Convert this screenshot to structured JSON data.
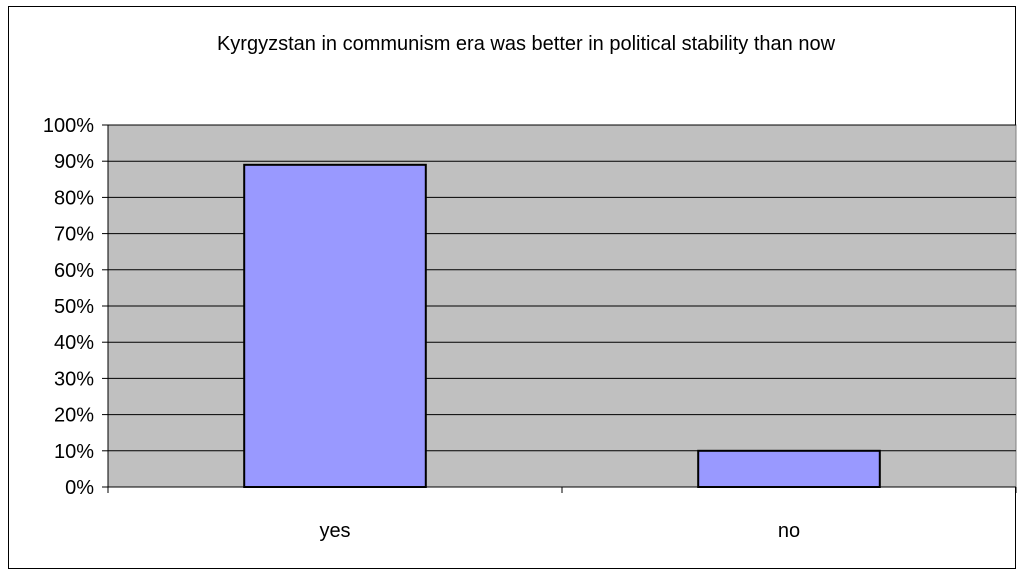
{
  "chart_data": {
    "type": "bar",
    "title": "Kyrgyzstan in communism era was better in political stability than now",
    "xlabel": "",
    "ylabel": "",
    "categories": [
      "yes",
      "no"
    ],
    "values": [
      89,
      10
    ],
    "value_unit": "%",
    "ylim": [
      0,
      100
    ],
    "yticks": [
      "0%",
      "10%",
      "20%",
      "30%",
      "40%",
      "50%",
      "60%",
      "70%",
      "80%",
      "90%",
      "100%"
    ],
    "grid": true,
    "legend": "none",
    "colors": {
      "plot_background": "#c0c0c0",
      "bar_fill": "#9999ff",
      "bar_stroke": "#000000",
      "gridline": "#000000"
    }
  }
}
